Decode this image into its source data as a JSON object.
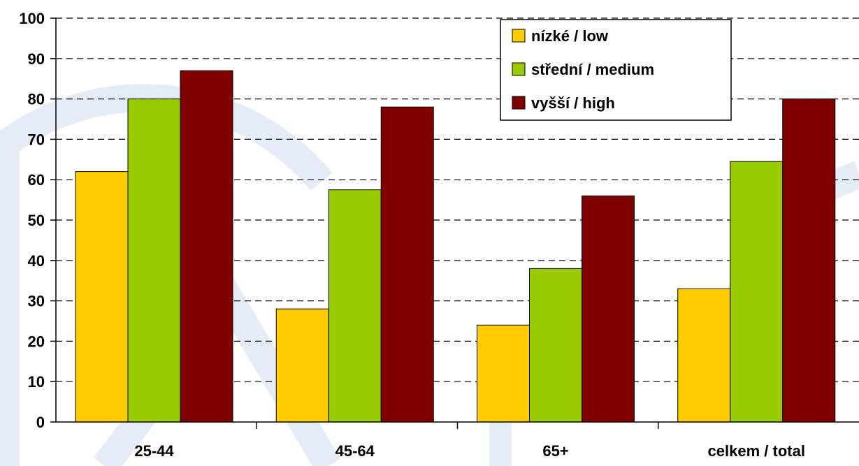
{
  "colors": {
    "low": "#ffcc00",
    "medium": "#99cc00",
    "high": "#800000",
    "watermark": "#e6ecf7"
  },
  "chart_data": {
    "type": "bar",
    "categories": [
      "25-44",
      "45-64",
      "65+",
      "celkem / total"
    ],
    "series": [
      {
        "name": "nízké / low",
        "values": [
          62,
          28,
          24,
          33
        ]
      },
      {
        "name": "střední / medium",
        "values": [
          80,
          57.5,
          38,
          64.5
        ]
      },
      {
        "name": "vyšší / high",
        "values": [
          87,
          78,
          56,
          80
        ]
      }
    ],
    "yticks": [
      0,
      10,
      20,
      30,
      40,
      50,
      60,
      70,
      80,
      90,
      100
    ],
    "ylim": [
      0,
      100
    ],
    "grid": true,
    "legend_position": "top-right"
  }
}
